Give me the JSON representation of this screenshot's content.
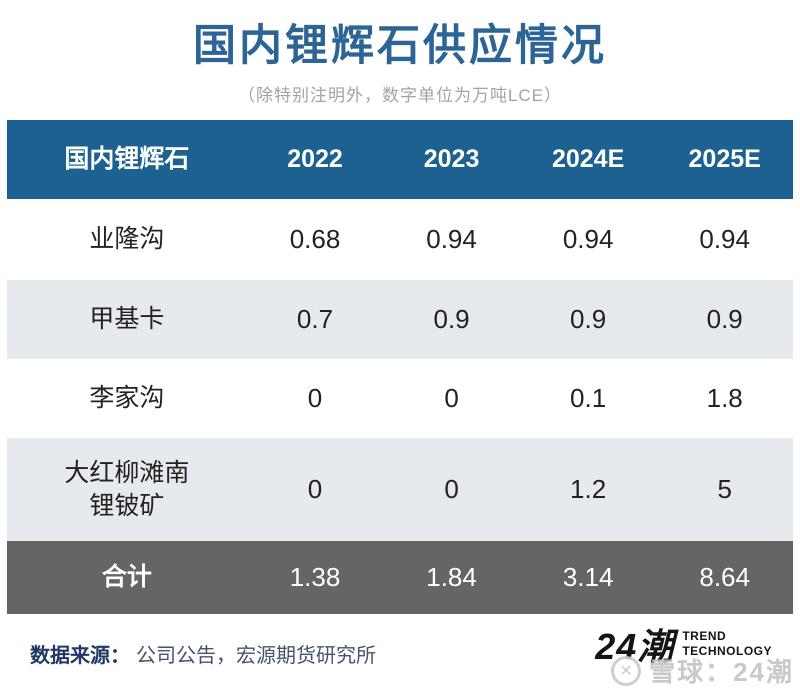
{
  "header": {
    "title": "国内锂辉石供应情况",
    "subtitle": "（除特别注明外，数字单位为万吨LCE）"
  },
  "table": {
    "headers": [
      "国内锂辉石",
      "2022",
      "2023",
      "2024E",
      "2025E"
    ],
    "rows": [
      {
        "label": "业隆沟",
        "values": [
          "0.68",
          "0.94",
          "0.94",
          "0.94"
        ]
      },
      {
        "label": "甲基卡",
        "values": [
          "0.7",
          "0.9",
          "0.9",
          "0.9"
        ]
      },
      {
        "label": "李家沟",
        "values": [
          "0",
          "0",
          "0.1",
          "1.8"
        ]
      },
      {
        "label": "大红柳滩南\n锂铍矿",
        "values": [
          "0",
          "0",
          "1.2",
          "5"
        ]
      }
    ],
    "total": {
      "label": "合计",
      "values": [
        "1.38",
        "1.84",
        "3.14",
        "8.64"
      ]
    }
  },
  "footer": {
    "source_label": "数据来源：",
    "source_text": "公司公告，宏源期货研究所",
    "logo_text": "24潮",
    "logo_sub_line1": "TREND",
    "logo_sub_line2": "TECHNOLOGY",
    "watermark_icon": "✕",
    "watermark_text": "雪球：24潮"
  },
  "colors": {
    "title_blue": "#2d6496",
    "header_row_bg": "#1d6190",
    "alt_row_bg": "#e6eaee",
    "total_row_bg": "#656565",
    "source_label_navy": "#1f3864",
    "source_text_slate": "#44546a",
    "subtitle_gray": "#a3a3a3",
    "watermark_gray": "#c9c9c9"
  },
  "chart_data": {
    "type": "table",
    "title": "国内锂辉石供应情况",
    "unit_note": "除特别注明外，数字单位为万吨LCE",
    "columns": [
      "国内锂辉石",
      "2022",
      "2023",
      "2024E",
      "2025E"
    ],
    "rows": [
      [
        "业隆沟",
        0.68,
        0.94,
        0.94,
        0.94
      ],
      [
        "甲基卡",
        0.7,
        0.9,
        0.9,
        0.9
      ],
      [
        "李家沟",
        0,
        0,
        0.1,
        1.8
      ],
      [
        "大红柳滩南锂铍矿",
        0,
        0,
        1.2,
        5
      ],
      [
        "合计",
        1.38,
        1.84,
        3.14,
        8.64
      ]
    ],
    "source": "公司公告，宏源期货研究所"
  }
}
